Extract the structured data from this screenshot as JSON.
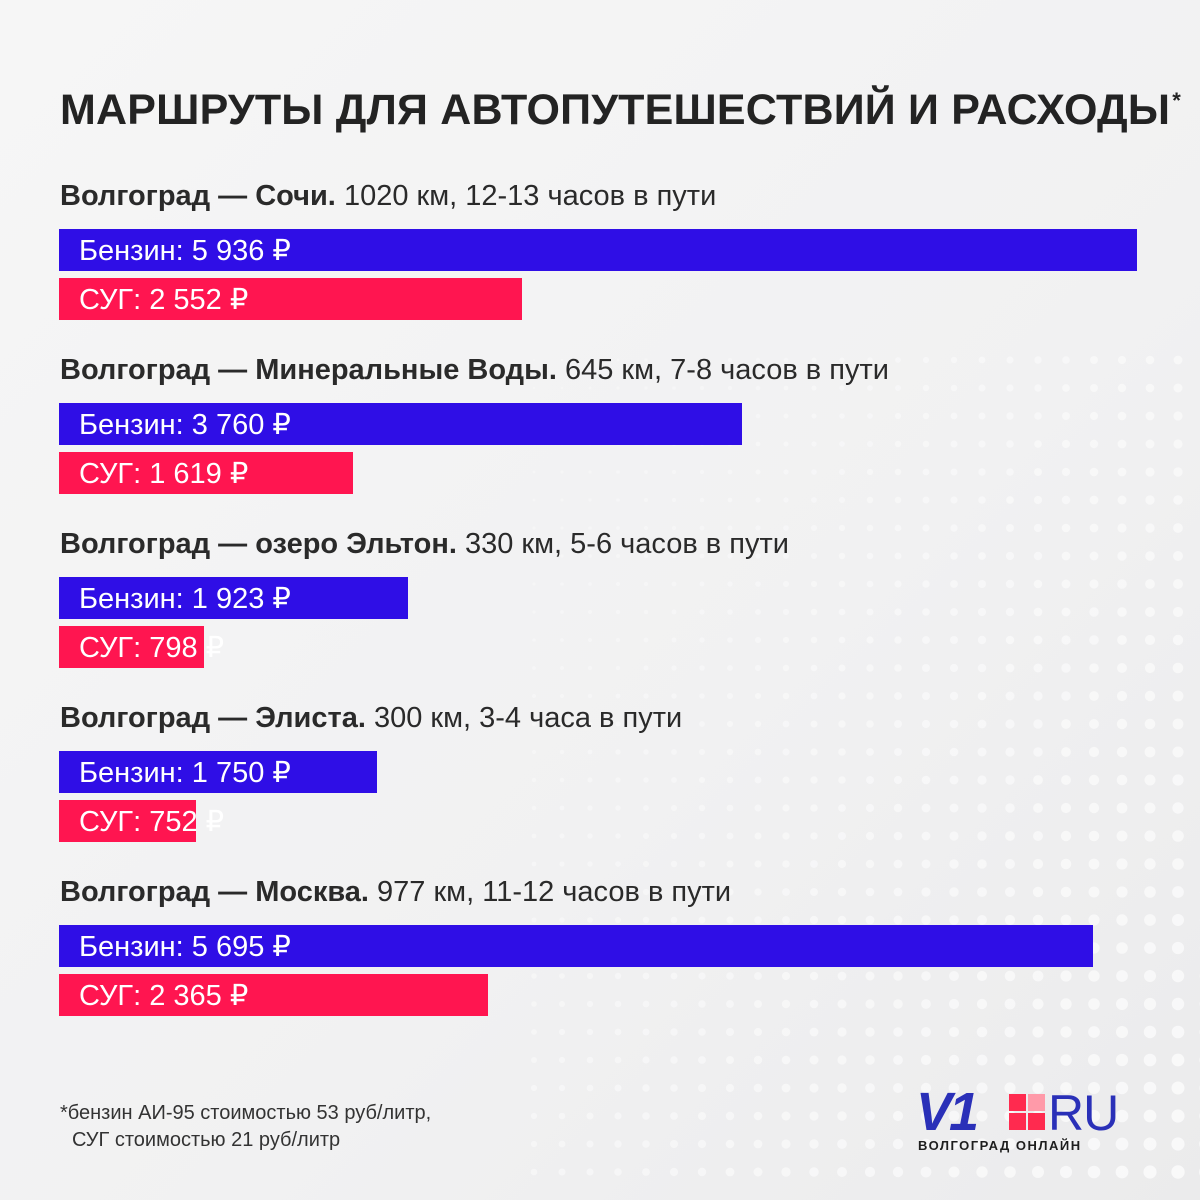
{
  "title": "МАРШРУТЫ ДЛЯ АВТОПУТЕШЕСТВИЙ И РАСХОДЫ",
  "title_mark": "*",
  "colors": {
    "petrol": "#2f0ee6",
    "lpg": "#ff1550",
    "logo_blue": "#2a30b8",
    "logo_red": "#ff2a4f"
  },
  "routes": [
    {
      "name": "Волгоград — Сочи.",
      "details": "1020 км, 12-13 часов в пути",
      "petrol_label": "Бензин: 5 936 ₽",
      "lpg_label": "СУГ: 2 552 ₽"
    },
    {
      "name": "Волгоград — Минеральные Воды.",
      "details": "645 км, 7-8 часов в пути",
      "petrol_label": "Бензин: 3 760 ₽",
      "lpg_label": "СУГ: 1 619 ₽"
    },
    {
      "name": "Волгоград — озеро Эльтон.",
      "details": "330 км, 5-6 часов в пути",
      "petrol_label": "Бензин: 1 923 ₽",
      "lpg_label": "СУГ: 798 ₽"
    },
    {
      "name": "Волгоград — Элиста.",
      "details": "300 км, 3-4 часа в пути",
      "petrol_label": "Бензин: 1 750 ₽",
      "lpg_label": "СУГ: 752 ₽"
    },
    {
      "name": "Волгоград — Москва.",
      "details": "977 км, 11-12 часов в пути",
      "petrol_label": "Бензин: 5 695 ₽",
      "lpg_label": "СУГ: 2 365 ₽"
    }
  ],
  "chart_data": {
    "type": "bar",
    "orientation": "horizontal",
    "title": "МАРШРУТЫ ДЛЯ АВТОПУТЕШЕСТВИЙ И РАСХОДЫ*",
    "categories": [
      "Волгоград — Сочи.",
      "Волгоград — Минеральные Воды.",
      "Волгоград — озеро Эльтон.",
      "Волгоград — Элиста.",
      "Волгоград — Москва."
    ],
    "series": [
      {
        "name": "Бензин",
        "values": [
          5936,
          3760,
          1923,
          1750,
          5695
        ]
      },
      {
        "name": "СУГ",
        "values": [
          2552,
          1619,
          798,
          752,
          2365
        ]
      }
    ],
    "xlim": [
      0,
      5936
    ],
    "grid": false,
    "legend": "none"
  },
  "footnote": {
    "line1": "*бензин АИ-95 стоимостью 53 руб/литр,",
    "line2": "СУГ стоимостью 21 руб/литр"
  },
  "logo": {
    "brand_main": "V1",
    "brand_domain": "RU",
    "subtitle": "ВОЛГОГРАД ОНЛАЙН"
  }
}
